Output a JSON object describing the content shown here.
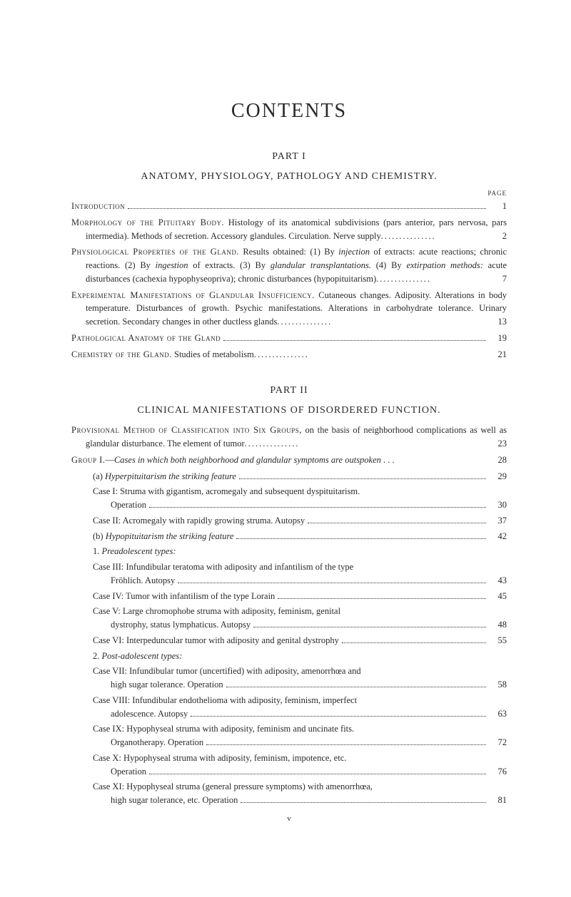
{
  "title": "CONTENTS",
  "parts": [
    {
      "label": "PART I",
      "heading": "ANATOMY, PHYSIOLOGY, PATHOLOGY AND CHEMISTRY.",
      "page_label": "PAGE",
      "entries": [
        {
          "type": "simple",
          "lead": "Introduction",
          "page": "1"
        },
        {
          "type": "multi",
          "lead": "Morphology of the Pituitary Body.",
          "body": "Histology of its anatomical subdivisions (pars anterior, pars nervosa, pars intermedia). Methods of secretion. Accessory glandules. Circulation. Nerve supply",
          "page": "2"
        },
        {
          "type": "multi",
          "lead": "Physiological Properties of the Gland.",
          "body_parts": [
            {
              "t": "Results obtained: (1) By "
            },
            {
              "t": "injection",
              "italic": true
            },
            {
              "t": " of extracts: acute reactions; chronic reactions. (2) By "
            },
            {
              "t": "ingestion",
              "italic": true
            },
            {
              "t": " of extracts. (3) By "
            },
            {
              "t": "glandular transplantations.",
              "italic": true
            },
            {
              "t": " (4) By "
            },
            {
              "t": "extirpation methods:",
              "italic": true
            },
            {
              "t": " acute disturbances (cachexia hypophyseopriva); chronic disturbances (hypopituitarism)"
            }
          ],
          "page": "7"
        },
        {
          "type": "multi",
          "lead": "Experimental Manifestations of Glandular Insufficiency.",
          "body": "Cutaneous changes. Adiposity. Alterations in body temperature. Disturbances of growth. Psychic manifestations. Alterations in carbohydrate tolerance. Urinary secretion. Secondary changes in other ductless glands",
          "page": "13"
        },
        {
          "type": "simple",
          "lead": "Pathological Anatomy of the Gland",
          "page": "19"
        },
        {
          "type": "multi",
          "lead": "Chemistry of the Gland.",
          "body": "Studies of metabolism",
          "page": "21"
        }
      ]
    },
    {
      "label": "PART II",
      "heading": "CLINICAL MANIFESTATIONS OF DISORDERED FUNCTION.",
      "entries": [
        {
          "type": "multi",
          "lead": "Provisional Method of Classification into Six Groups,",
          "body": "on the basis of neighborhood complications as well as glandular disturbance. The element of tumor",
          "page": "23"
        },
        {
          "type": "group",
          "lead": "Group I.",
          "body_parts": [
            {
              "t": "—"
            },
            {
              "t": "Cases in which both neighborhood and glandular symptoms are outspoken",
              "italic": true
            }
          ],
          "page": "28"
        },
        {
          "type": "sub",
          "body_parts": [
            {
              "t": "(a) "
            },
            {
              "t": "Hyperpituitarism the striking feature",
              "italic": true
            }
          ],
          "page": "29"
        },
        {
          "type": "sub",
          "text": "Case I: Struma with gigantism, acromegaly and subsequent dyspituitarism.",
          "last_line": "Operation",
          "page": "30"
        },
        {
          "type": "sub",
          "text": "Case II: Acromegaly with rapidly growing struma. Autopsy",
          "page": "37"
        },
        {
          "type": "sub",
          "body_parts": [
            {
              "t": "(b) "
            },
            {
              "t": "Hypopituitarism the striking feature",
              "italic": true
            }
          ],
          "page": "42"
        },
        {
          "type": "sub",
          "body_parts": [
            {
              "t": "1. "
            },
            {
              "t": "Preadolescent types:",
              "italic": true
            }
          ]
        },
        {
          "type": "sub",
          "text": "Case III: Infundibular teratoma with adiposity and infantilism of the type",
          "last_line": "Fröhlich. Autopsy",
          "page": "43"
        },
        {
          "type": "sub",
          "text": "Case IV: Tumor with infantilism of the type Lorain",
          "page": "45"
        },
        {
          "type": "sub",
          "text": "Case V: Large chromophobe struma with adiposity, feminism, genital",
          "last_line": "dystrophy, status lymphaticus. Autopsy",
          "page": "48"
        },
        {
          "type": "sub",
          "text": "Case VI: Interpeduncular tumor with adiposity and genital dystrophy",
          "page": "55"
        },
        {
          "type": "sub",
          "body_parts": [
            {
              "t": "2. "
            },
            {
              "t": "Post-adolescent types:",
              "italic": true
            }
          ]
        },
        {
          "type": "sub",
          "text": "Case VII: Infundibular tumor (uncertified) with adiposity, amenorrhœa and",
          "last_line": "high sugar tolerance. Operation",
          "page": "58"
        },
        {
          "type": "sub",
          "text": "Case VIII: Infundibular endothelioma with adiposity, feminism, imperfect",
          "last_line": "adolescence. Autopsy",
          "page": "63"
        },
        {
          "type": "sub",
          "text": "Case IX: Hypophyseal struma with adiposity, feminism and uncinate fits.",
          "last_line": "Organotherapy. Operation",
          "page": "72"
        },
        {
          "type": "sub",
          "text": "Case X: Hypophyseal struma with adiposity, feminism, impotence, etc.",
          "last_line": "Operation",
          "page": "76"
        },
        {
          "type": "sub",
          "text": "Case XI: Hypophyseal struma (general pressure symptoms) with amenorrhœa,",
          "last_line": "high sugar tolerance, etc. Operation",
          "page": "81"
        }
      ]
    }
  ],
  "footer": "v"
}
